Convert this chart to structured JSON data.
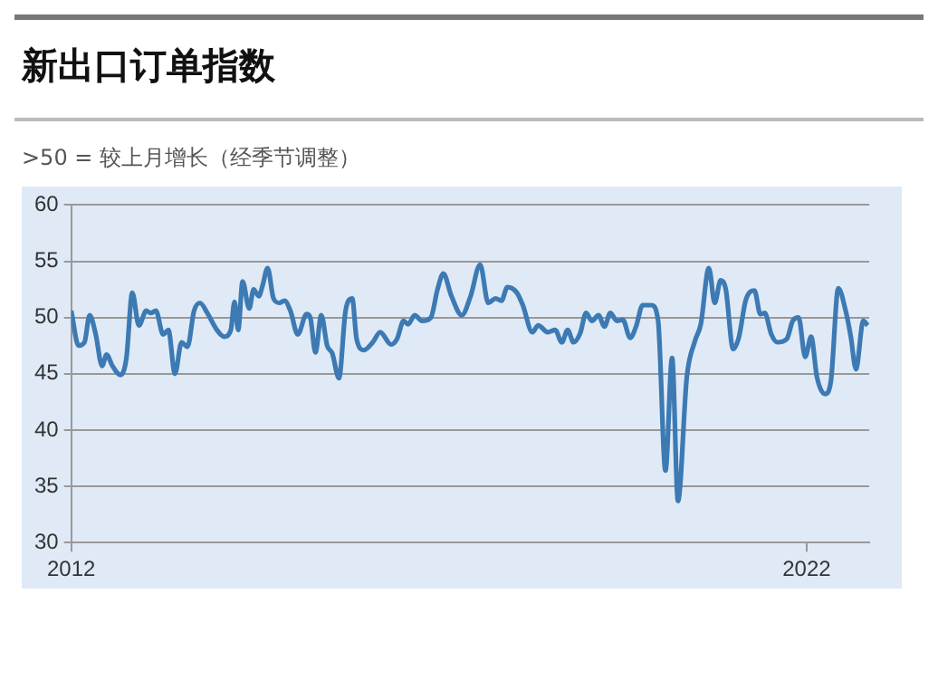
{
  "chart_data": {
    "type": "line",
    "title": "新出口订单指数",
    "subtitle": ">50 = 较上月增长（经季节调整）",
    "xlim": [
      2012,
      2022.85
    ],
    "xticks": [
      2012,
      2022
    ],
    "ylim": [
      30,
      60
    ],
    "yticks": [
      30,
      35,
      40,
      45,
      50,
      55,
      60
    ],
    "grid": "y",
    "legend": false,
    "marker": "none",
    "line_style": "solid",
    "series": [
      {
        "color": "#3d7ab3",
        "x": [
          2012.0,
          2012.1,
          2012.18,
          2012.25,
          2012.33,
          2012.42,
          2012.48,
          2012.56,
          2012.67,
          2012.75,
          2012.83,
          2012.92,
          2013.02,
          2013.08,
          2013.15,
          2013.25,
          2013.32,
          2013.41,
          2013.5,
          2013.58,
          2013.67,
          2013.75,
          2013.85,
          2013.98,
          2014.08,
          2014.17,
          2014.22,
          2014.27,
          2014.33,
          2014.42,
          2014.48,
          2014.55,
          2014.6,
          2014.67,
          2014.75,
          2014.83,
          2014.9,
          2014.98,
          2015.08,
          2015.2,
          2015.25,
          2015.32,
          2015.4,
          2015.48,
          2015.55,
          2015.64,
          2015.73,
          2015.82,
          2015.88,
          2015.98,
          2016.1,
          2016.2,
          2016.35,
          2016.43,
          2016.52,
          2016.58,
          2016.67,
          2016.77,
          2016.89,
          2016.98,
          2017.06,
          2017.17,
          2017.31,
          2017.43,
          2017.56,
          2017.67,
          2017.77,
          2017.85,
          2017.93,
          2018.06,
          2018.14,
          2018.27,
          2018.35,
          2018.48,
          2018.58,
          2018.67,
          2018.75,
          2018.83,
          2018.92,
          2019.0,
          2019.08,
          2019.17,
          2019.25,
          2019.33,
          2019.42,
          2019.5,
          2019.6,
          2019.68,
          2019.77,
          2019.89,
          2019.98,
          2020.08,
          2020.17,
          2020.25,
          2020.37,
          2020.48,
          2020.56,
          2020.67,
          2020.75,
          2020.83,
          2020.9,
          2021.0,
          2021.08,
          2021.17,
          2021.29,
          2021.37,
          2021.43,
          2021.52,
          2021.6,
          2021.73,
          2021.81,
          2021.89,
          2021.98,
          2022.06,
          2022.14,
          2022.25,
          2022.33,
          2022.43,
          2022.53,
          2022.6,
          2022.67,
          2022.77,
          2022.83
        ],
        "values": [
          50.6,
          47.5,
          47.8,
          50.2,
          48.6,
          45.7,
          46.7,
          45.7,
          44.9,
          46.4,
          52.2,
          49.3,
          50.6,
          50.4,
          50.6,
          48.5,
          48.9,
          45.0,
          47.8,
          47.4,
          50.6,
          51.3,
          50.4,
          48.9,
          48.3,
          48.9,
          51.4,
          48.9,
          53.2,
          50.8,
          52.5,
          51.9,
          52.8,
          54.4,
          51.7,
          51.3,
          51.5,
          50.6,
          48.5,
          50.3,
          50.0,
          46.9,
          50.2,
          47.5,
          46.8,
          44.6,
          50.6,
          51.7,
          48.1,
          47.1,
          47.8,
          48.7,
          47.6,
          48.1,
          49.7,
          49.4,
          50.2,
          49.7,
          50.0,
          52.5,
          53.9,
          51.9,
          50.2,
          51.9,
          54.7,
          51.3,
          51.7,
          51.5,
          52.7,
          52.2,
          51.1,
          48.7,
          49.3,
          48.7,
          48.9,
          47.8,
          48.9,
          47.8,
          48.6,
          50.4,
          49.7,
          50.2,
          49.2,
          50.4,
          49.7,
          49.8,
          48.2,
          49.2,
          51.1,
          51.1,
          49.7,
          36.4,
          46.4,
          33.7,
          44.7,
          47.9,
          49.4,
          54.4,
          51.3,
          53.3,
          52.5,
          47.2,
          48.3,
          51.5,
          52.4,
          50.3,
          50.4,
          48.5,
          47.8,
          48.1,
          49.7,
          50.0,
          46.5,
          48.3,
          44.7,
          43.2,
          44.4,
          52.6,
          50.6,
          48.3,
          45.4,
          49.7,
          49.3
        ]
      }
    ]
  }
}
